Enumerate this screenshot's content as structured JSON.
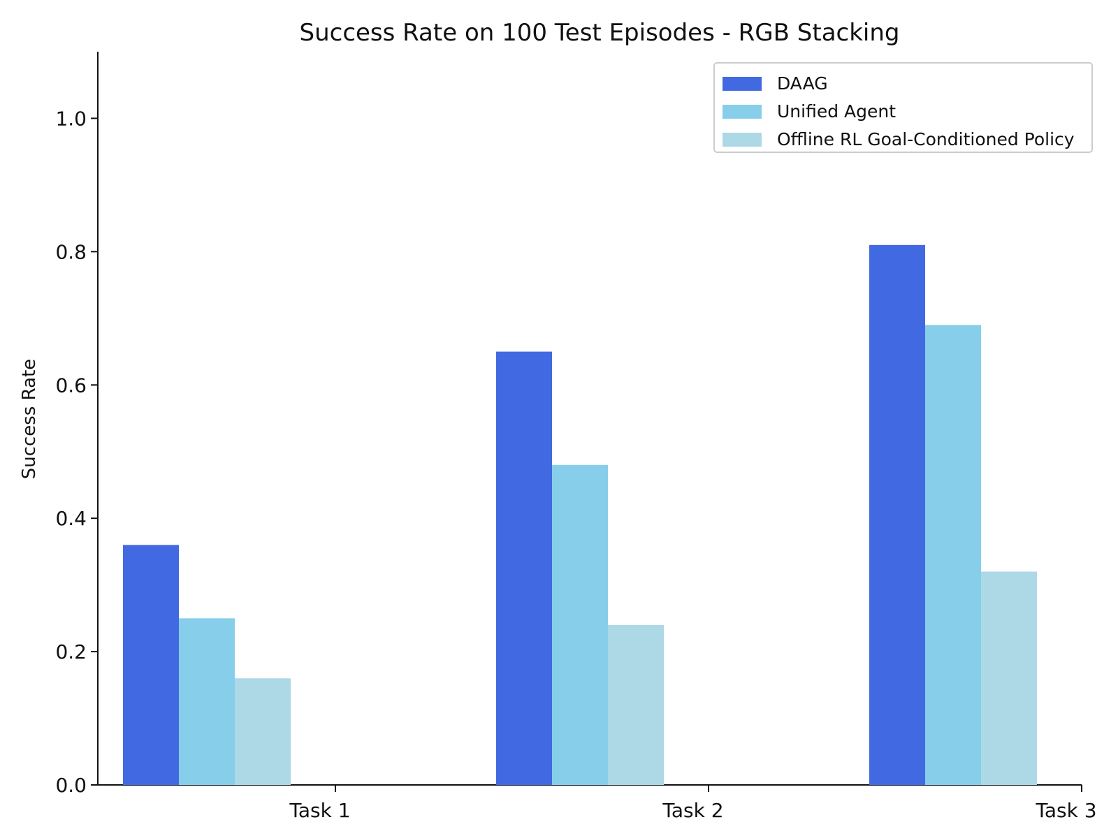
{
  "chart_data": {
    "type": "bar",
    "title": "Success Rate on 100 Test Episodes - RGB Stacking",
    "xlabel": "",
    "ylabel": "Success Rate",
    "categories": [
      "Task 1",
      "Task 2",
      "Task 3"
    ],
    "series": [
      {
        "name": "DAAG",
        "color": "#4169E1",
        "values": [
          0.36,
          0.65,
          0.81
        ]
      },
      {
        "name": "Unified Agent",
        "color": "#87CEEB",
        "values": [
          0.25,
          0.48,
          0.69
        ]
      },
      {
        "name": "Offline RL Goal-Conditioned Policy",
        "color": "#ADD8E6",
        "values": [
          0.16,
          0.24,
          0.32
        ]
      }
    ],
    "ylim": [
      0,
      1.1
    ],
    "yticks": [
      "0.0",
      "0.2",
      "0.4",
      "0.6",
      "0.8",
      "1.0"
    ],
    "grid": false,
    "legend_position": "top-right"
  }
}
